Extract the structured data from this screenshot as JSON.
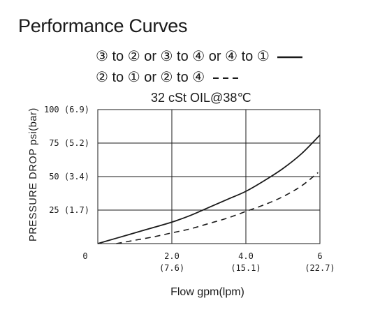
{
  "chart_data": {
    "type": "line",
    "title": "Performance Curves",
    "subtitle": "32 cSt OIL@38℃",
    "xlabel": "Flow gpm(lpm)",
    "ylabel": "PRESSURE DROP psi(bar)",
    "xlim": [
      0,
      6
    ],
    "ylim": [
      0,
      100
    ],
    "x_ticks": [
      {
        "value": 0,
        "label": "0",
        "sub": ""
      },
      {
        "value": 2,
        "label": "2.0",
        "sub": "(7.6)"
      },
      {
        "value": 4,
        "label": "4.0",
        "sub": "(15.1)"
      },
      {
        "value": 6,
        "label": "6",
        "sub": "(22.7)"
      }
    ],
    "y_ticks": [
      {
        "value": 25,
        "label": "25 (1.7)"
      },
      {
        "value": 50,
        "label": "50 (3.4)"
      },
      {
        "value": 75,
        "label": "75 (5.2)"
      },
      {
        "value": 100,
        "label": "100 (6.9)"
      }
    ],
    "grid": true,
    "series": [
      {
        "name": "③ to ② or ③ to ④ or ④ to ①",
        "style": "solid",
        "color": "#1a1a1a",
        "x": [
          0,
          0.5,
          1,
          1.5,
          2,
          2.5,
          3,
          3.5,
          4,
          4.5,
          5,
          5.5,
          6
        ],
        "y": [
          0,
          4,
          8,
          12,
          16,
          21,
          27,
          33,
          39,
          47,
          56,
          67,
          81
        ]
      },
      {
        "name": "② to ① or ② to ④",
        "style": "dashed",
        "color": "#1a1a1a",
        "x": [
          0.5,
          1,
          1.5,
          2,
          2.5,
          3,
          3.5,
          4,
          4.5,
          5,
          5.5,
          5.95
        ],
        "y": [
          0,
          2.5,
          5,
          8,
          11,
          15,
          19,
          24,
          29,
          35,
          43,
          53
        ]
      }
    ]
  }
}
